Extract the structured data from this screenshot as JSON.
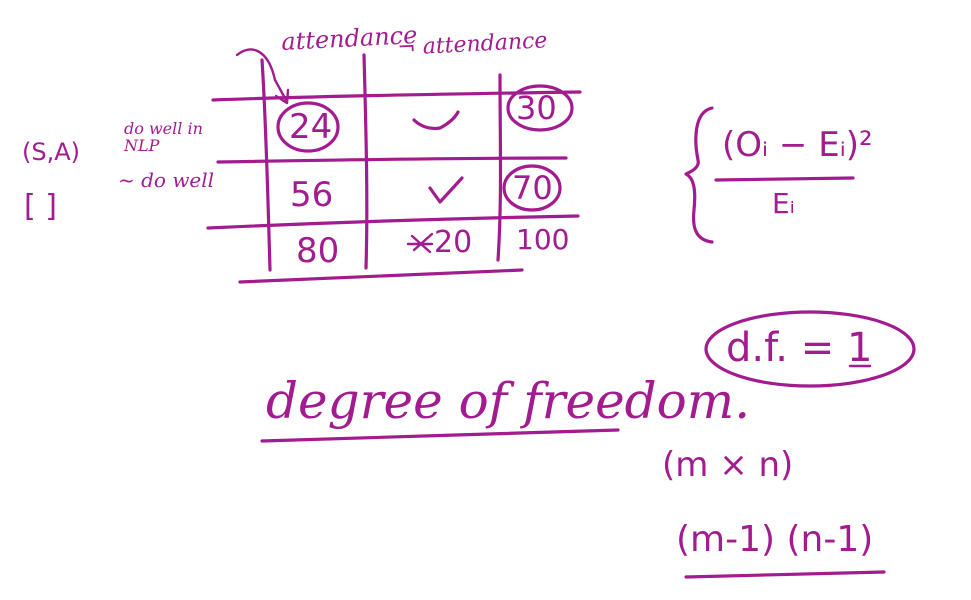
{
  "palette": {
    "ink": "#a21b8f",
    "background": "#ffffff"
  },
  "table": {
    "header_col1": "attendance",
    "header_col2": "¬ attendance",
    "row1_label": "do well in NLP",
    "row2_label": "~ do well",
    "row1_tag": "(S,A)",
    "row2_tag": "[     ]",
    "cells": {
      "r1c1": "24",
      "r1c2": "✓",
      "r1_total": "30",
      "r2c1": "56",
      "r2c2": "✓",
      "r2_total": "70",
      "col1_total": "80",
      "col2_total": "20",
      "grand_total": "100"
    }
  },
  "formula": {
    "numerator": "(Oᵢ − Eᵢ)²",
    "denominator": "Eᵢ",
    "sum_symbol": "{"
  },
  "df_label": "d.f. = 1",
  "heading": "degree of freedom.",
  "matrix_size": "(m × n)",
  "df_formula": "(m-1) (n-1)"
}
